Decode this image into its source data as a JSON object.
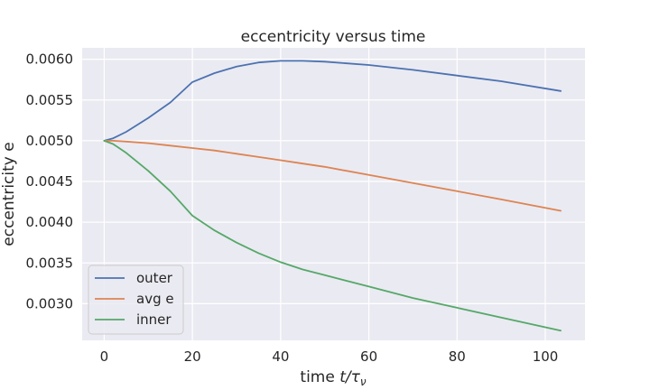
{
  "chart_data": {
    "type": "line",
    "title": "eccentricity versus time",
    "xlabel_text": "time ",
    "xlabel_math": "t/τ",
    "xlabel_sub": "ν",
    "ylabel": "eccentricity e",
    "xlim": [
      -5,
      109
    ],
    "ylim": [
      0.00255,
      0.00614
    ],
    "xticks": [
      0,
      20,
      40,
      60,
      80,
      100
    ],
    "yticks": [
      0.003,
      0.0035,
      0.004,
      0.0045,
      0.005,
      0.0055,
      0.006
    ],
    "ytick_labels": [
      "0.0030",
      "0.0035",
      "0.0040",
      "0.0045",
      "0.0050",
      "0.0055",
      "0.0060"
    ],
    "grid": true,
    "legend_location": "lower-left",
    "x": [
      0,
      2,
      5,
      10,
      15,
      20,
      25,
      30,
      35,
      40,
      45,
      50,
      60,
      70,
      80,
      90,
      103.5
    ],
    "series": [
      {
        "name": "outer",
        "color": "#4c72b0",
        "values": [
          0.005,
          0.00503,
          0.00511,
          0.00528,
          0.00547,
          0.00572,
          0.00583,
          0.00591,
          0.00596,
          0.00598,
          0.00598,
          0.00597,
          0.00593,
          0.00587,
          0.0058,
          0.00573,
          0.00561
        ]
      },
      {
        "name": "avg e",
        "color": "#dd8452",
        "values": [
          0.005,
          0.005,
          0.00499,
          0.00497,
          0.00494,
          0.00491,
          0.00488,
          0.00484,
          0.0048,
          0.00476,
          0.00472,
          0.00468,
          0.00458,
          0.00448,
          0.00438,
          0.00428,
          0.00414
        ]
      },
      {
        "name": "inner",
        "color": "#55a868",
        "values": [
          0.005,
          0.00496,
          0.00485,
          0.00463,
          0.00438,
          0.00408,
          0.0039,
          0.00375,
          0.00362,
          0.00351,
          0.00342,
          0.00335,
          0.00321,
          0.00307,
          0.00295,
          0.00283,
          0.00267
        ]
      }
    ]
  }
}
